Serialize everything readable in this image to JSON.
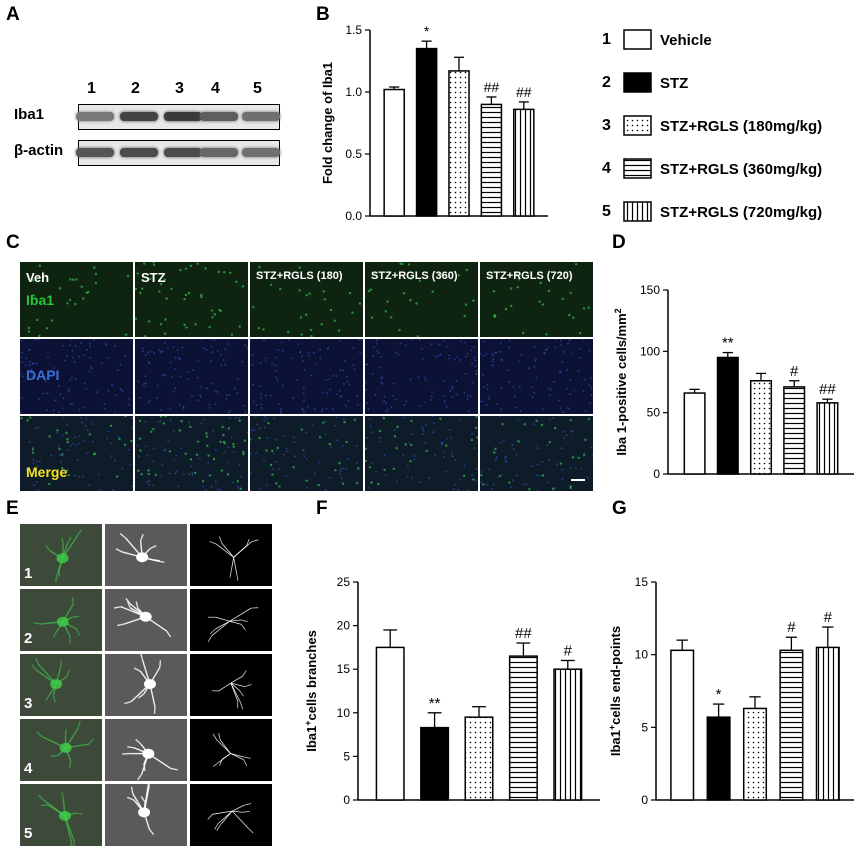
{
  "panels": {
    "A": {
      "label": "A",
      "lane_numbers": [
        "1",
        "2",
        "3",
        "4",
        "5"
      ],
      "rows": [
        {
          "name": "Iba1",
          "intensity": [
            0.55,
            0.85,
            0.9,
            0.7,
            0.6
          ]
        },
        {
          "name": "β-actin",
          "intensity": [
            0.75,
            0.8,
            0.8,
            0.65,
            0.6
          ]
        }
      ]
    },
    "C": {
      "label": "C",
      "columns": [
        "Veh",
        "STZ",
        "STZ+RGLS (180)",
        "STZ+RGLS (360)",
        "STZ+RGLS (720)"
      ],
      "rows": [
        "Iba1",
        "DAPI",
        "Merge"
      ],
      "row_colors": {
        "Iba1": "#29c43b",
        "DAPI": "#3a6fd6",
        "Merge": "#f5e11a"
      }
    },
    "E": {
      "label": "E",
      "rows": [
        "1",
        "2",
        "3",
        "4",
        "5"
      ]
    }
  },
  "legend": {
    "entries": [
      {
        "num": "1",
        "label": "Vehicle",
        "pattern": "open"
      },
      {
        "num": "2",
        "label": "STZ",
        "pattern": "solid"
      },
      {
        "num": "3",
        "label": "STZ+RGLS (180mg/kg)",
        "pattern": "dots"
      },
      {
        "num": "4",
        "label": "STZ+RGLS (360mg/kg)",
        "pattern": "hlines"
      },
      {
        "num": "5",
        "label": "STZ+RGLS (720mg/kg)",
        "pattern": "vlines"
      }
    ]
  },
  "chart_data": [
    {
      "id": "B",
      "label": "B",
      "type": "bar",
      "ylabel": "Fold change of Iba1",
      "ylim": [
        0,
        1.5
      ],
      "yticks": [
        "0.0",
        "0.5",
        "1.0",
        "1.5"
      ],
      "patterns": [
        "open",
        "solid",
        "dots",
        "hlines",
        "vlines"
      ],
      "values": [
        1.02,
        1.35,
        1.17,
        0.9,
        0.86
      ],
      "errors": [
        0.02,
        0.06,
        0.11,
        0.06,
        0.06
      ],
      "annotations": [
        "",
        "*",
        "",
        "##",
        "##"
      ]
    },
    {
      "id": "D",
      "label": "D",
      "type": "bar",
      "ylabel": "Iba 1-positive cells/mm",
      "ylabel_sup": "2",
      "ylim": [
        0,
        150
      ],
      "yticks": [
        "0",
        "50",
        "100",
        "150"
      ],
      "patterns": [
        "open",
        "solid",
        "dots",
        "hlines",
        "vlines"
      ],
      "values": [
        66,
        95,
        76,
        71,
        58
      ],
      "errors": [
        3,
        4,
        6,
        5,
        3
      ],
      "annotations": [
        "",
        "**",
        "",
        "#",
        "##"
      ]
    },
    {
      "id": "F",
      "label": "F",
      "type": "bar",
      "ylabel_pre": "Iba1",
      "ylabel_sup": "+",
      "ylabel_post": "cells branches",
      "ylim": [
        0,
        25
      ],
      "yticks": [
        "0",
        "5",
        "10",
        "15",
        "20",
        "25"
      ],
      "patterns": [
        "open",
        "solid",
        "dots",
        "hlines",
        "vlines"
      ],
      "values": [
        17.5,
        8.3,
        9.5,
        16.5,
        15.0
      ],
      "errors": [
        2.0,
        1.7,
        1.2,
        1.5,
        1.0
      ],
      "annotations": [
        "",
        "**",
        "",
        "##",
        "#"
      ]
    },
    {
      "id": "G",
      "label": "G",
      "type": "bar",
      "ylabel_pre": "Iba1",
      "ylabel_sup": "+",
      "ylabel_post": "cells end-points",
      "ylim": [
        0,
        15
      ],
      "yticks": [
        "0",
        "5",
        "10",
        "15"
      ],
      "patterns": [
        "open",
        "solid",
        "dots",
        "hlines",
        "vlines"
      ],
      "values": [
        10.3,
        5.7,
        6.3,
        10.3,
        10.5
      ],
      "errors": [
        0.7,
        0.9,
        0.8,
        0.9,
        1.4
      ],
      "annotations": [
        "",
        "*",
        "",
        "#",
        "#"
      ]
    }
  ]
}
